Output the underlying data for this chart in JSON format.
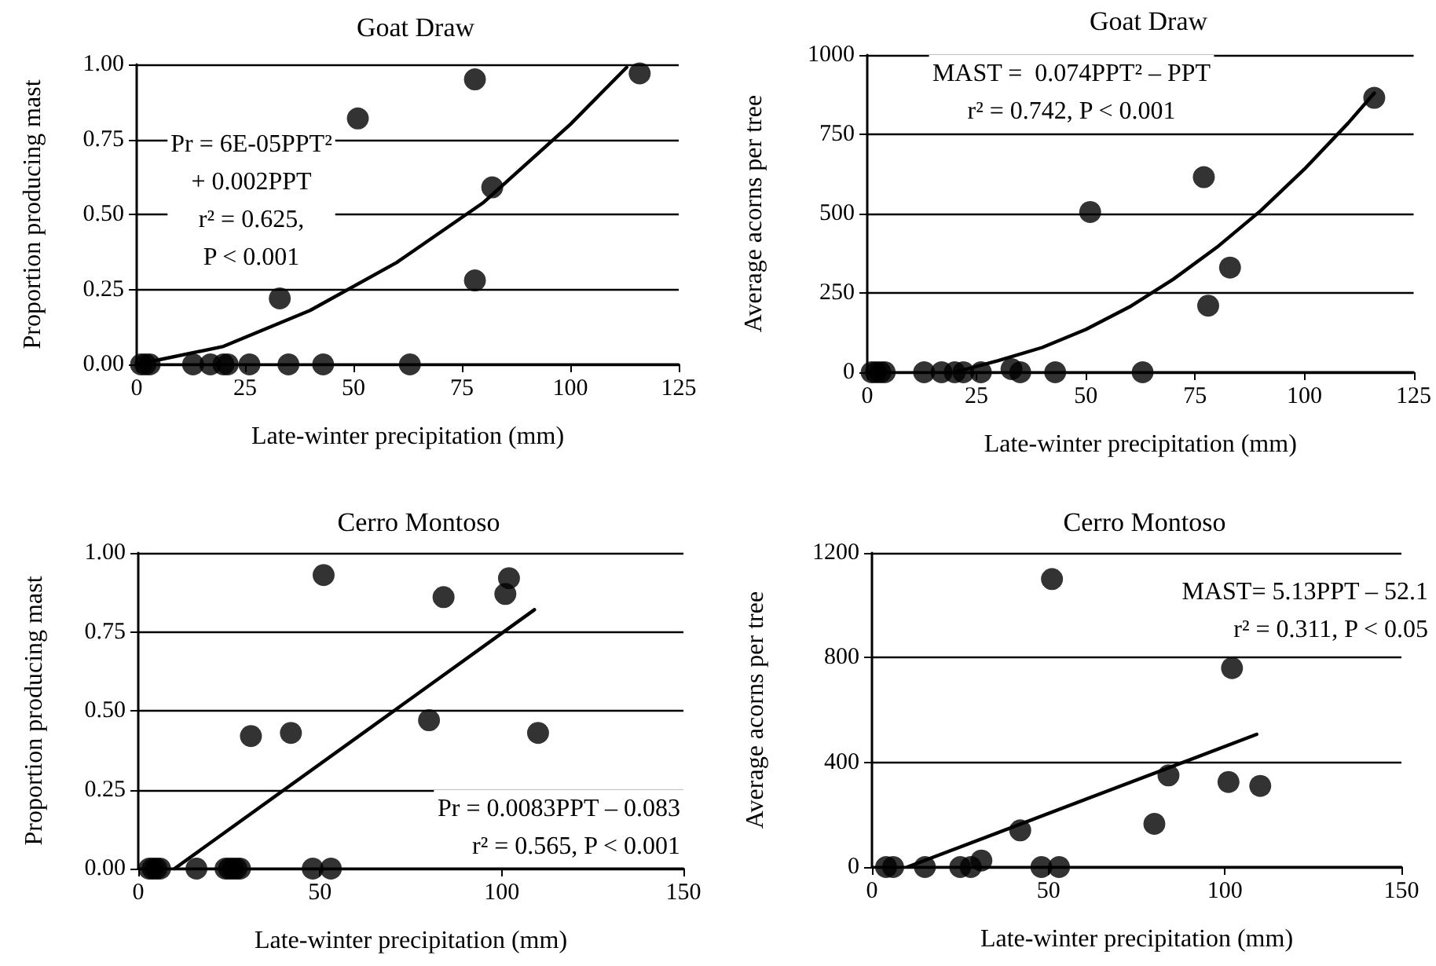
{
  "chart_data": [
    {
      "type": "scatter",
      "title": "Goat Draw",
      "xlabel": "Late-winter precipitation (mm)",
      "ylabel": "Proportion producing mast",
      "xlim": [
        0,
        125
      ],
      "xticks": [
        0,
        25,
        50,
        75,
        100,
        125
      ],
      "ylim": [
        0,
        1
      ],
      "yticks": [
        {
          "value": 0,
          "label": "0.00"
        },
        {
          "value": 0.25,
          "label": "0.25"
        },
        {
          "value": 0.5,
          "label": "0.50"
        },
        {
          "value": 0.75,
          "label": "0.75"
        },
        {
          "value": 1,
          "label": "1.00"
        }
      ],
      "grid": "y",
      "marker": "circle",
      "annotations": [
        "Pr = 6E-05PPT²\n+ 0.002PPT\nr² = 0.625,\nP < 0.001"
      ],
      "series": [
        {
          "color": "#000000",
          "x": [
            1,
            2,
            3,
            13,
            17,
            20,
            21,
            26,
            33,
            35,
            43,
            51,
            63,
            78,
            78,
            82,
            116
          ],
          "values": [
            0,
            0,
            0,
            0,
            0,
            0,
            0,
            0,
            0.22,
            0,
            0,
            0.82,
            0,
            0.95,
            0.28,
            0.59,
            0.97
          ]
        },
        {
          "type": "line",
          "color": "#000000",
          "marker": "none",
          "line_style": "solid",
          "x": [
            0,
            20,
            40,
            60,
            80,
            100,
            113
          ],
          "values": [
            0,
            0.06,
            0.18,
            0.34,
            0.54,
            0.8,
            0.99
          ]
        }
      ]
    },
    {
      "type": "scatter",
      "title": "Goat Draw",
      "xlabel": "Late-winter precipitation (mm)",
      "ylabel": "Average acorns per tree",
      "xlim": [
        0,
        125
      ],
      "xticks": [
        0,
        25,
        50,
        75,
        100,
        125
      ],
      "ylim": [
        0,
        1000
      ],
      "yticks": [
        0,
        250,
        500,
        750,
        1000
      ],
      "grid": "y",
      "marker": "circle",
      "annotations": [
        "MAST =  0.074PPT² – PPT\nr² = 0.742, P < 0.001"
      ],
      "series": [
        {
          "color": "#000000",
          "x": [
            1,
            2,
            3,
            4,
            13,
            17,
            20,
            22,
            26,
            33,
            35,
            43,
            51,
            63,
            77,
            78,
            83,
            116
          ],
          "values": [
            0,
            0,
            0,
            0,
            0,
            0,
            0,
            0,
            0,
            10,
            0,
            0,
            505,
            0,
            615,
            210,
            330,
            865
          ]
        },
        {
          "type": "line",
          "color": "#000000",
          "marker": "none",
          "line_style": "solid",
          "x": [
            20,
            30,
            40,
            50,
            60,
            70,
            80,
            90,
            100,
            110,
            116
          ],
          "values": [
            0,
            37,
            78,
            135,
            206,
            293,
            394,
            509,
            640,
            785,
            880
          ]
        }
      ]
    },
    {
      "type": "scatter",
      "title": "Cerro Montoso",
      "xlabel": "Late-winter precipitation (mm)",
      "ylabel": "Proportion producing mast",
      "xlim": [
        0,
        150
      ],
      "xticks": [
        0,
        50,
        100,
        150
      ],
      "ylim": [
        0,
        1
      ],
      "yticks": [
        {
          "value": 0,
          "label": "0.00"
        },
        {
          "value": 0.25,
          "label": "0.25"
        },
        {
          "value": 0.5,
          "label": "0.50"
        },
        {
          "value": 0.75,
          "label": "0.75"
        },
        {
          "value": 1,
          "label": "1.00"
        }
      ],
      "grid": "y",
      "marker": "circle",
      "annotations": [
        "Pr = 0.0083PPT – 0.083\nr² = 0.565, P < 0.001"
      ],
      "series": [
        {
          "color": "#000000",
          "x": [
            3,
            4,
            5,
            6,
            16,
            24,
            25,
            26,
            27,
            28,
            31,
            42,
            48,
            51,
            53,
            80,
            84,
            101,
            102,
            110
          ],
          "values": [
            0,
            0,
            0,
            0,
            0,
            0,
            0,
            0,
            0,
            0,
            0.42,
            0.43,
            0,
            0.93,
            0,
            0.47,
            0.86,
            0.87,
            0.92,
            0.43
          ]
        },
        {
          "type": "line",
          "color": "#000000",
          "marker": "none",
          "line_style": "solid",
          "x": [
            10,
            109
          ],
          "values": [
            0,
            0.82
          ]
        }
      ]
    },
    {
      "type": "scatter",
      "title": "Cerro Montoso",
      "xlabel": "Late-winter precipitation (mm)",
      "ylabel": "Average acorns per tree",
      "xlim": [
        0,
        150
      ],
      "xticks": [
        0,
        50,
        100,
        150
      ],
      "ylim": [
        0,
        1200
      ],
      "yticks": [
        0,
        400,
        800,
        1200
      ],
      "grid": "y",
      "marker": "circle",
      "annotations": [
        "MAST= 5.13PPT – 52.1\nr² = 0.311, P < 0.05"
      ],
      "series": [
        {
          "color": "#000000",
          "x": [
            4,
            6,
            15,
            25,
            28,
            31,
            42,
            48,
            51,
            53,
            80,
            84,
            101,
            102,
            110
          ],
          "values": [
            0,
            0,
            0,
            0,
            0,
            25,
            140,
            0,
            1100,
            0,
            165,
            350,
            325,
            760,
            310
          ]
        },
        {
          "type": "line",
          "color": "#000000",
          "marker": "none",
          "line_style": "solid",
          "x": [
            10,
            109
          ],
          "values": [
            0,
            507
          ]
        }
      ]
    }
  ]
}
